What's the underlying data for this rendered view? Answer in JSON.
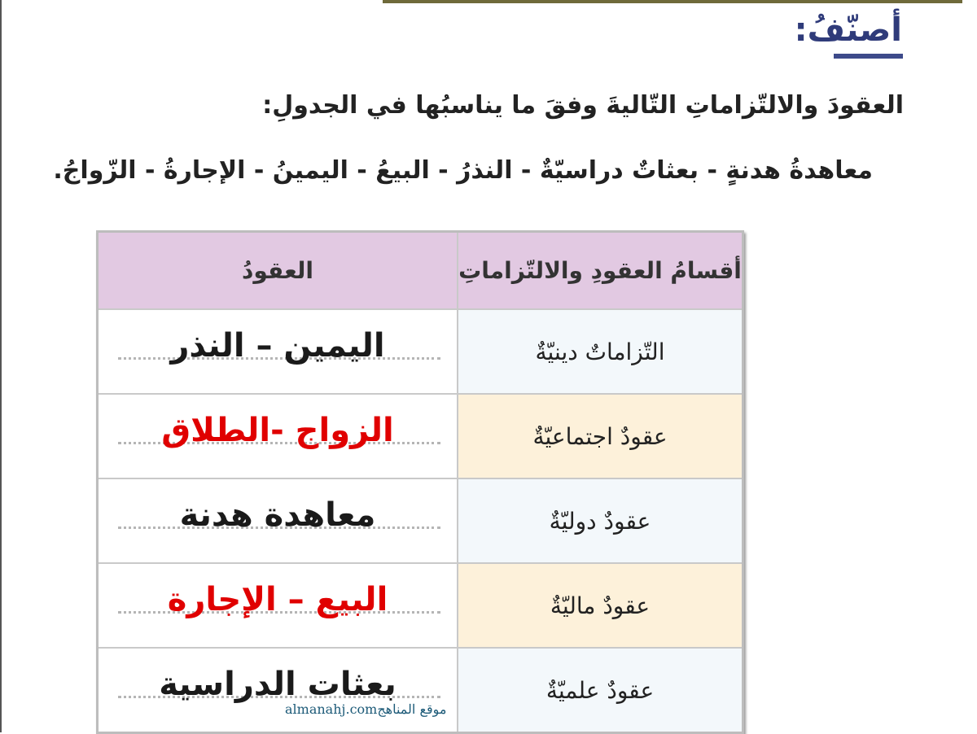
{
  "title": "أصنّفُ:",
  "instruction": "العقودَ والالتّزاماتِ التّاليةَ وفقَ ما يناسبُها في الجدولِ:",
  "word_bank": "معاهدةُ هدنةٍ - بعثاتٌ دراسيّةٌ - النذرُ - البيعُ - اليمينُ - الإجارةُ - الزّواجُ.",
  "table": {
    "headers": {
      "category": "أقسامُ العقودِ والالتّزاماتِ",
      "contracts": "العقودُ"
    },
    "rows": [
      {
        "category": "التّزاماتٌ دينيّةٌ",
        "answer": "اليمين – النذر",
        "answer_color": "#1a1a1a",
        "bg": "blue"
      },
      {
        "category": "عقودٌ اجتماعيّةٌ",
        "answer": "الزواج -الطلاق",
        "answer_color": "#e00000",
        "bg": "cream"
      },
      {
        "category": "عقودٌ دوليّةٌ",
        "answer": "معاهدة هدنة",
        "answer_color": "#1a1a1a",
        "bg": "blue"
      },
      {
        "category": "عقودٌ ماليّةٌ",
        "answer": "البيع – الإجارة",
        "answer_color": "#e00000",
        "bg": "cream"
      },
      {
        "category": "عقودٌ علميّةٌ",
        "answer": "بعثات الدراسية",
        "answer_color": "#1a1a1a",
        "bg": "blue"
      }
    ]
  },
  "watermark": "almanahj.comموقع المناهج"
}
